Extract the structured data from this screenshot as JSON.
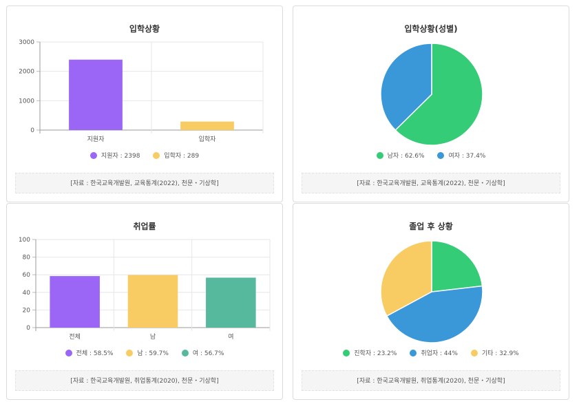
{
  "cards": [
    {
      "title": "입학상황",
      "source": "[자료 : 한국교육개발원, 교육통계(2022), 천문・기상학]",
      "legend": [
        {
          "label": "지원자 : 2398",
          "color": "#9b66f5"
        },
        {
          "label": "입학자 : 289",
          "color": "#f8cc63"
        }
      ]
    },
    {
      "title": "입학상황(성별)",
      "source": "[자료 : 한국교육개발원, 교육통계(2022), 천문・기상학]",
      "legend": [
        {
          "label": "남자 : 62.6%",
          "color": "#34cc76"
        },
        {
          "label": "여자 : 37.4%",
          "color": "#3b98d8"
        }
      ]
    },
    {
      "title": "취업률",
      "source": "[자료 : 한국교육개발원, 취업통계(2020), 천문・기상학]",
      "legend": [
        {
          "label": "전체 : 58.5%",
          "color": "#9b66f5"
        },
        {
          "label": "남 : 59.7%",
          "color": "#f8cc63"
        },
        {
          "label": "여 : 56.7%",
          "color": "#56b99e"
        }
      ]
    },
    {
      "title": "졸업 후 상황",
      "source": "[자료 : 한국교육개발원, 취업통계(2020), 천문・기상학]",
      "legend": [
        {
          "label": "진학자 : 23.2%",
          "color": "#34cc76"
        },
        {
          "label": "취업자 : 44%",
          "color": "#3b98d8"
        },
        {
          "label": "기타 : 32.9%",
          "color": "#f8cc63"
        }
      ]
    }
  ],
  "chart_data": [
    {
      "type": "bar",
      "title": "입학상황",
      "categories": [
        "지원자",
        "입학자"
      ],
      "values": [
        2398,
        289
      ],
      "colors": [
        "#9b66f5",
        "#f8cc63"
      ],
      "ylim": [
        0,
        3000
      ],
      "yticks": [
        "0",
        "1000",
        "2000",
        "3000"
      ],
      "grid": true,
      "legend": "bottom"
    },
    {
      "type": "pie",
      "title": "입학상황(성별)",
      "labels": [
        "남자",
        "여자"
      ],
      "values": [
        62.6,
        37.4
      ],
      "colors": [
        "#34cc76",
        "#3b98d8"
      ],
      "legend": "bottom"
    },
    {
      "type": "bar",
      "title": "취업률",
      "categories": [
        "전체",
        "남",
        "여"
      ],
      "values": [
        58.5,
        59.7,
        56.7
      ],
      "colors": [
        "#9b66f5",
        "#f8cc63",
        "#56b99e"
      ],
      "ylim": [
        0,
        100
      ],
      "yticks": [
        "0",
        "20",
        "40",
        "60",
        "80",
        "100"
      ],
      "grid": true,
      "legend": "bottom"
    },
    {
      "type": "pie",
      "title": "졸업 후 상황",
      "labels": [
        "진학자",
        "취업자",
        "기타"
      ],
      "values": [
        23.2,
        44,
        32.9
      ],
      "colors": [
        "#34cc76",
        "#3b98d8",
        "#f8cc63"
      ],
      "legend": "bottom"
    }
  ]
}
